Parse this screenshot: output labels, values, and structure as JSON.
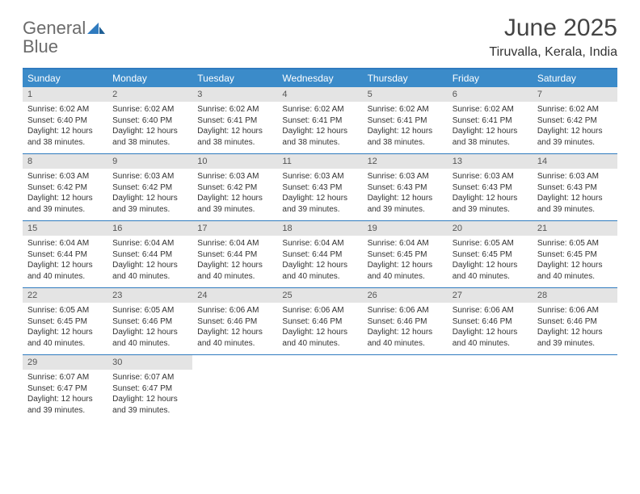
{
  "colors": {
    "header_blue": "#3b8bc9",
    "rule_blue": "#2f7bbf",
    "daynum_bg": "#e4e4e4",
    "text": "#333333",
    "logo_gray": "#6b6b6b",
    "logo_blue": "#2f7bbf",
    "background": "#ffffff"
  },
  "typography": {
    "title_fontsize": 30,
    "location_fontsize": 16,
    "weekday_fontsize": 12,
    "daynum_fontsize": 11,
    "body_fontsize": 10
  },
  "logo": {
    "word1": "General",
    "word2": "Blue"
  },
  "title": "June 2025",
  "location": "Tiruvalla, Kerala, India",
  "weekdays": [
    "Sunday",
    "Monday",
    "Tuesday",
    "Wednesday",
    "Thursday",
    "Friday",
    "Saturday"
  ],
  "labels": {
    "sunrise": "Sunrise:",
    "sunset": "Sunset:",
    "daylight": "Daylight:"
  },
  "days": [
    {
      "n": "1",
      "sunrise": "6:02 AM",
      "sunset": "6:40 PM",
      "daylight": "12 hours and 38 minutes."
    },
    {
      "n": "2",
      "sunrise": "6:02 AM",
      "sunset": "6:40 PM",
      "daylight": "12 hours and 38 minutes."
    },
    {
      "n": "3",
      "sunrise": "6:02 AM",
      "sunset": "6:41 PM",
      "daylight": "12 hours and 38 minutes."
    },
    {
      "n": "4",
      "sunrise": "6:02 AM",
      "sunset": "6:41 PM",
      "daylight": "12 hours and 38 minutes."
    },
    {
      "n": "5",
      "sunrise": "6:02 AM",
      "sunset": "6:41 PM",
      "daylight": "12 hours and 38 minutes."
    },
    {
      "n": "6",
      "sunrise": "6:02 AM",
      "sunset": "6:41 PM",
      "daylight": "12 hours and 38 minutes."
    },
    {
      "n": "7",
      "sunrise": "6:02 AM",
      "sunset": "6:42 PM",
      "daylight": "12 hours and 39 minutes."
    },
    {
      "n": "8",
      "sunrise": "6:03 AM",
      "sunset": "6:42 PM",
      "daylight": "12 hours and 39 minutes."
    },
    {
      "n": "9",
      "sunrise": "6:03 AM",
      "sunset": "6:42 PM",
      "daylight": "12 hours and 39 minutes."
    },
    {
      "n": "10",
      "sunrise": "6:03 AM",
      "sunset": "6:42 PM",
      "daylight": "12 hours and 39 minutes."
    },
    {
      "n": "11",
      "sunrise": "6:03 AM",
      "sunset": "6:43 PM",
      "daylight": "12 hours and 39 minutes."
    },
    {
      "n": "12",
      "sunrise": "6:03 AM",
      "sunset": "6:43 PM",
      "daylight": "12 hours and 39 minutes."
    },
    {
      "n": "13",
      "sunrise": "6:03 AM",
      "sunset": "6:43 PM",
      "daylight": "12 hours and 39 minutes."
    },
    {
      "n": "14",
      "sunrise": "6:03 AM",
      "sunset": "6:43 PM",
      "daylight": "12 hours and 39 minutes."
    },
    {
      "n": "15",
      "sunrise": "6:04 AM",
      "sunset": "6:44 PM",
      "daylight": "12 hours and 40 minutes."
    },
    {
      "n": "16",
      "sunrise": "6:04 AM",
      "sunset": "6:44 PM",
      "daylight": "12 hours and 40 minutes."
    },
    {
      "n": "17",
      "sunrise": "6:04 AM",
      "sunset": "6:44 PM",
      "daylight": "12 hours and 40 minutes."
    },
    {
      "n": "18",
      "sunrise": "6:04 AM",
      "sunset": "6:44 PM",
      "daylight": "12 hours and 40 minutes."
    },
    {
      "n": "19",
      "sunrise": "6:04 AM",
      "sunset": "6:45 PM",
      "daylight": "12 hours and 40 minutes."
    },
    {
      "n": "20",
      "sunrise": "6:05 AM",
      "sunset": "6:45 PM",
      "daylight": "12 hours and 40 minutes."
    },
    {
      "n": "21",
      "sunrise": "6:05 AM",
      "sunset": "6:45 PM",
      "daylight": "12 hours and 40 minutes."
    },
    {
      "n": "22",
      "sunrise": "6:05 AM",
      "sunset": "6:45 PM",
      "daylight": "12 hours and 40 minutes."
    },
    {
      "n": "23",
      "sunrise": "6:05 AM",
      "sunset": "6:46 PM",
      "daylight": "12 hours and 40 minutes."
    },
    {
      "n": "24",
      "sunrise": "6:06 AM",
      "sunset": "6:46 PM",
      "daylight": "12 hours and 40 minutes."
    },
    {
      "n": "25",
      "sunrise": "6:06 AM",
      "sunset": "6:46 PM",
      "daylight": "12 hours and 40 minutes."
    },
    {
      "n": "26",
      "sunrise": "6:06 AM",
      "sunset": "6:46 PM",
      "daylight": "12 hours and 40 minutes."
    },
    {
      "n": "27",
      "sunrise": "6:06 AM",
      "sunset": "6:46 PM",
      "daylight": "12 hours and 40 minutes."
    },
    {
      "n": "28",
      "sunrise": "6:06 AM",
      "sunset": "6:46 PM",
      "daylight": "12 hours and 39 minutes."
    },
    {
      "n": "29",
      "sunrise": "6:07 AM",
      "sunset": "6:47 PM",
      "daylight": "12 hours and 39 minutes."
    },
    {
      "n": "30",
      "sunrise": "6:07 AM",
      "sunset": "6:47 PM",
      "daylight": "12 hours and 39 minutes."
    }
  ]
}
